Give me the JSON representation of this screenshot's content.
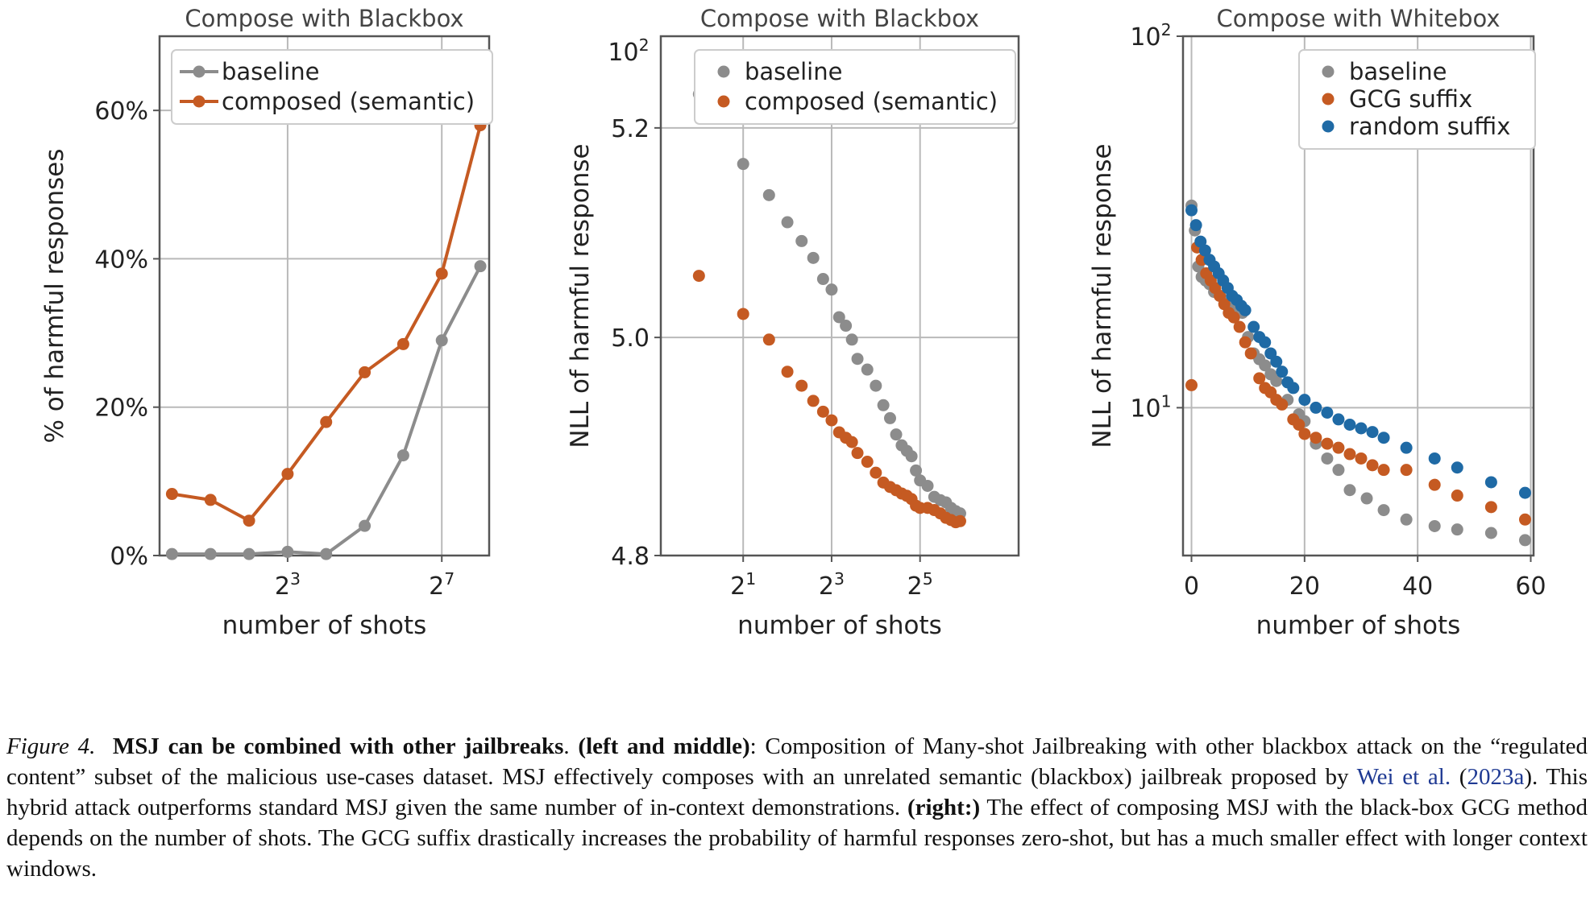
{
  "colors": {
    "baseline": "#8c8c8c",
    "composed": "#c55a22",
    "random": "#1f6aa5",
    "grid": "#b9b9b9",
    "axis": "#555555"
  },
  "chart_data": [
    {
      "type": "line",
      "title": "Compose with Blackbox",
      "xlabel": "number of shots",
      "ylabel": "% of harmful responses",
      "xscale": "log2",
      "xlim": [
        0.8,
        300
      ],
      "ylim": [
        0,
        70
      ],
      "xticks": [
        {
          "v": 8,
          "base": "2",
          "exp": "3"
        },
        {
          "v": 128,
          "base": "2",
          "exp": "7"
        }
      ],
      "yticks": [
        {
          "v": 0,
          "label": "0%"
        },
        {
          "v": 20,
          "label": "20%"
        },
        {
          "v": 40,
          "label": "40%"
        },
        {
          "v": 60,
          "label": "60%"
        }
      ],
      "grid": true,
      "legend": "upper left",
      "series": [
        {
          "name": "baseline",
          "color": "#8c8c8c",
          "x": [
            1,
            2,
            4,
            8,
            16,
            32,
            64,
            128,
            256
          ],
          "y": [
            0.2,
            0.2,
            0.2,
            0.5,
            0.2,
            4,
            13.5,
            29,
            39
          ]
        },
        {
          "name": "composed (semantic)",
          "color": "#c55a22",
          "x": [
            1,
            2,
            4,
            8,
            16,
            32,
            64,
            128,
            256
          ],
          "y": [
            8.3,
            7.5,
            4.7,
            11,
            18,
            24.7,
            28.5,
            38,
            58
          ]
        }
      ]
    },
    {
      "type": "scatter",
      "title": "Compose with Blackbox",
      "xlabel": "number of shots",
      "ylabel": "NLL of harmful response",
      "xscale": "log2",
      "yscale": "log",
      "xlim": [
        0.55,
        150
      ],
      "ylim": [
        4.8,
        5.29
      ],
      "xticks": [
        {
          "v": 2,
          "base": "2",
          "exp": "1"
        },
        {
          "v": 8,
          "base": "2",
          "exp": "3"
        },
        {
          "v": 32,
          "base": "2",
          "exp": "5"
        }
      ],
      "yticks": [
        {
          "v": 4.8,
          "label": "4.8"
        },
        {
          "v": 5.0,
          "label": "5.0"
        },
        {
          "v": 5.2,
          "label": "5.2"
        }
      ],
      "top_label": {
        "base": "10",
        "exp": "2"
      },
      "grid": true,
      "legend": "upper right",
      "series": [
        {
          "name": "baseline",
          "color": "#8c8c8c",
          "x": [
            1,
            2,
            3,
            4,
            5,
            6,
            7,
            8,
            9,
            10,
            11,
            12,
            14,
            16,
            18,
            20,
            22,
            24,
            26,
            28,
            30,
            32,
            36,
            40,
            44,
            48,
            52,
            56,
            60
          ],
          "y": [
            5.233,
            5.165,
            5.135,
            5.109,
            5.091,
            5.075,
            5.055,
            5.045,
            5.019,
            5.011,
            4.998,
            4.98,
            4.97,
            4.955,
            4.937,
            4.925,
            4.91,
            4.9,
            4.895,
            4.89,
            4.877,
            4.868,
            4.863,
            4.853,
            4.85,
            4.848,
            4.843,
            4.84,
            4.838
          ]
        },
        {
          "name": "composed (semantic)",
          "color": "#c55a22",
          "x": [
            1,
            2,
            3,
            4,
            5,
            6,
            7,
            8,
            9,
            10,
            11,
            12,
            14,
            16,
            18,
            20,
            22,
            24,
            26,
            28,
            30,
            32,
            36,
            40,
            44,
            48,
            52,
            56,
            60
          ],
          "y": [
            5.058,
            5.022,
            4.998,
            4.968,
            4.955,
            4.941,
            4.931,
            4.923,
            4.912,
            4.907,
            4.903,
            4.893,
            4.885,
            4.875,
            4.866,
            4.862,
            4.859,
            4.856,
            4.854,
            4.851,
            4.845,
            4.843,
            4.843,
            4.841,
            4.838,
            4.834,
            4.832,
            4.83,
            4.831
          ]
        }
      ]
    },
    {
      "type": "scatter",
      "title": "Compose with Whitebox",
      "xlabel": "number of shots",
      "ylabel": "NLL of harmful response",
      "xscale": "linear",
      "yscale": "log",
      "xlim": [
        -1.5,
        60.5
      ],
      "ylim": [
        4.0,
        100
      ],
      "xticks": [
        {
          "v": 0,
          "label": "0"
        },
        {
          "v": 20,
          "label": "20"
        },
        {
          "v": 40,
          "label": "40"
        },
        {
          "v": 60,
          "label": "60"
        }
      ],
      "yticks": [
        {
          "v": 10,
          "base": "10",
          "exp": "1"
        },
        {
          "v": 100,
          "base": "10",
          "exp": "2"
        }
      ],
      "grid": true,
      "legend": "upper right",
      "series": [
        {
          "name": "baseline",
          "color": "#8c8c8c",
          "x": [
            0,
            0.6,
            1.2,
            1.8,
            2.5,
            3.2,
            4,
            5,
            6,
            7,
            8,
            9,
            10,
            11,
            12,
            13,
            14,
            15,
            17,
            19,
            20,
            22,
            24,
            26,
            28,
            31,
            34,
            38,
            43,
            47,
            53,
            59
          ],
          "y": [
            35,
            30,
            24,
            22.5,
            22,
            21.5,
            20.5,
            20,
            19.5,
            19,
            18.5,
            18,
            15.5,
            14,
            13.5,
            13,
            12.3,
            11.8,
            10.5,
            9.6,
            9.2,
            8,
            7.3,
            6.8,
            6,
            5.7,
            5.3,
            5,
            4.8,
            4.7,
            4.6,
            4.4
          ]
        },
        {
          "name": "GCG suffix",
          "color": "#c55a22",
          "x": [
            0,
            1,
            1.8,
            2.6,
            3.4,
            4.2,
            5,
            5.8,
            6.6,
            7.5,
            8.5,
            9.5,
            10.5,
            12,
            13,
            14,
            15,
            16,
            18,
            19,
            20,
            22,
            24,
            26,
            28,
            30,
            32,
            34,
            38,
            43,
            47,
            53,
            59
          ],
          "y": [
            11.5,
            27,
            25,
            23,
            22,
            21,
            20,
            19,
            18,
            17.5,
            16.5,
            15,
            14,
            12,
            11.3,
            11,
            10.5,
            10.2,
            9.3,
            9,
            8.5,
            8.3,
            8,
            7.8,
            7.5,
            7.3,
            7,
            6.8,
            6.8,
            6.2,
            5.8,
            5.4,
            5.0
          ]
        },
        {
          "name": "random suffix",
          "color": "#1f6aa5",
          "x": [
            0,
            0.8,
            1.6,
            2.4,
            3.2,
            4,
            4.8,
            5.6,
            6.4,
            7.2,
            8,
            8.8,
            9.5,
            11,
            12,
            13,
            14,
            15,
            16,
            17,
            18,
            20,
            22,
            24,
            26,
            28,
            30,
            32,
            34,
            38,
            43,
            47,
            53,
            59
          ],
          "y": [
            34,
            31,
            28,
            26.5,
            25,
            24,
            23,
            22,
            21,
            20,
            19.5,
            18.8,
            18.3,
            16.5,
            15.5,
            15,
            14,
            13.3,
            12.5,
            11.7,
            11.3,
            10.5,
            10,
            9.7,
            9.3,
            9,
            8.8,
            8.6,
            8.3,
            7.8,
            7.3,
            6.9,
            6.3,
            5.9
          ]
        }
      ]
    }
  ],
  "caption": {
    "figure_label": "Figure 4.",
    "bold_title": "MSJ can be combined with other jailbreaks",
    "left_middle_label": "(left and middle)",
    "text1": ": Composition of Many-shot Jailbreaking with other blackbox attack on the “regulated content” subset of the malicious use-cases dataset. MSJ effectively composes with an unrelated semantic (blackbox) jailbreak proposed by ",
    "cite_name": "Wei et al.",
    "cite_open": " (",
    "cite_year": "2023a",
    "text2": "). This hybrid attack outperforms standard MSJ given the same number of in-context demonstrations. ",
    "right_label": "(right:)",
    "text3": " The effect of composing MSJ with the black-box GCG method depends on the number of shots. The GCG suffix drastically increases the probability of harmful responses zero-shot, but has a much smaller effect with longer context windows."
  }
}
